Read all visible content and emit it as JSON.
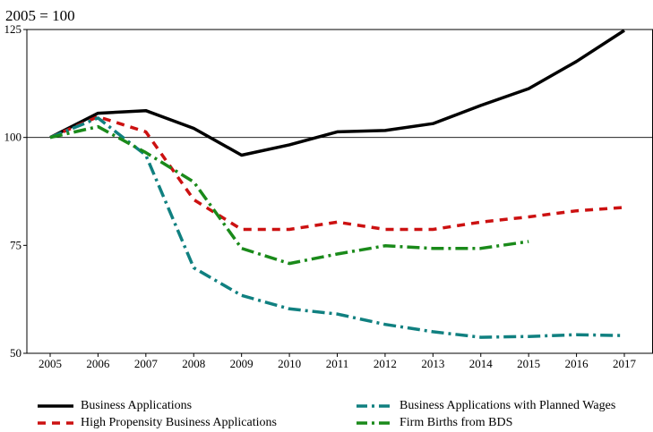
{
  "chart_data": {
    "type": "line",
    "unit_label": "2005 = 100",
    "x": [
      2005,
      2006,
      2007,
      2008,
      2009,
      2010,
      2011,
      2012,
      2013,
      2014,
      2015,
      2016,
      2017
    ],
    "xticks": [
      "2005",
      "2006",
      "2007",
      "2008",
      "2009",
      "2010",
      "2011",
      "2012",
      "2013",
      "2014",
      "2015",
      "2016",
      "2017"
    ],
    "ylim": [
      50,
      125
    ],
    "yticks": [
      "50",
      "75",
      "100",
      "125"
    ],
    "reference_line": 100,
    "grid": false,
    "legend_position": "bottom",
    "series": [
      {
        "name": "Business Applications",
        "color": "#000000",
        "dash": "solid",
        "values": [
          100,
          105.6,
          106.2,
          102.1,
          95.9,
          98.3,
          101.3,
          101.6,
          103.2,
          107.4,
          111.3,
          117.6,
          124.8
        ]
      },
      {
        "name": "High Propensity Business Applications",
        "color": "#cc1111",
        "dash": "dashed",
        "values": [
          100,
          104.8,
          101.3,
          85.6,
          78.7,
          78.7,
          80.4,
          78.7,
          78.7,
          80.4,
          81.6,
          83,
          83.8
        ]
      },
      {
        "name": "Business Applications with Planned Wages",
        "color": "#108080",
        "dash": "dashdot",
        "values": [
          100,
          104.5,
          95.9,
          69.8,
          63.4,
          60.3,
          59.1,
          56.7,
          55,
          53.7,
          53.9,
          54.3,
          54.1
        ]
      },
      {
        "name": "Firm Births from BDS",
        "color": "#1a8a1a",
        "dash": "dashdot",
        "values": [
          100,
          102.5,
          96.5,
          89.7,
          74.3,
          70.8,
          73,
          74.9,
          74.3,
          74.3,
          75.9,
          null,
          null
        ]
      }
    ]
  }
}
